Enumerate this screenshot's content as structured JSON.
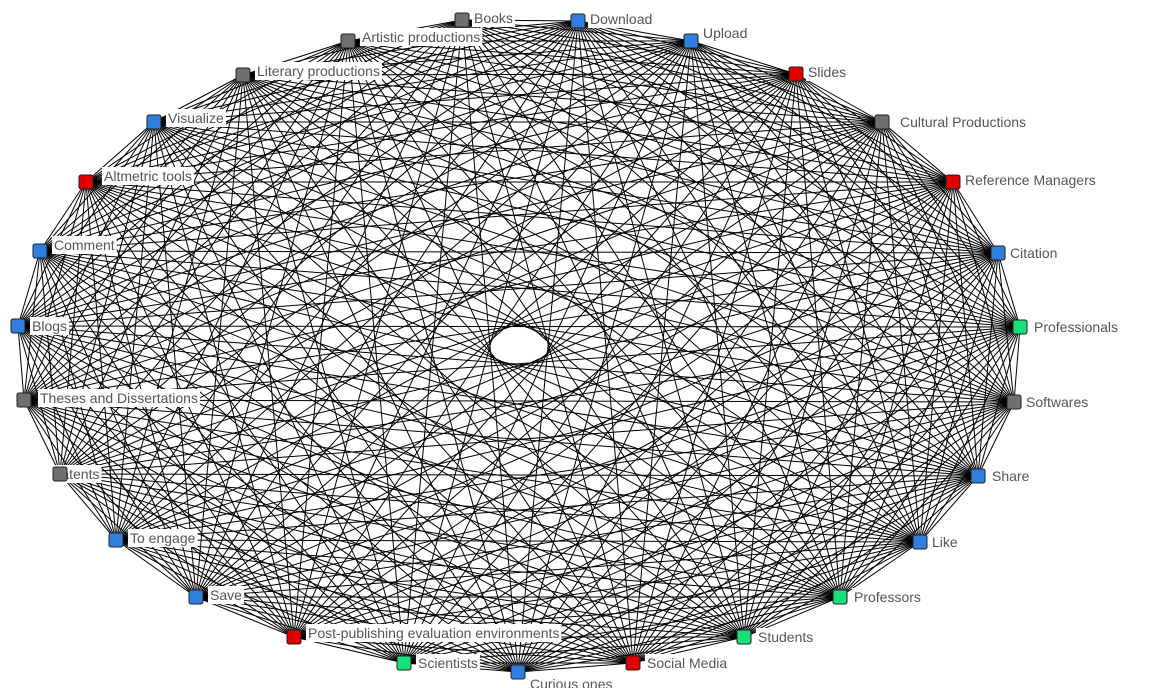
{
  "colors": {
    "blue": "#2f7fe0",
    "red": "#e00000",
    "gray": "#707070",
    "green": "#16e07a",
    "edge": "#000000",
    "label": "#555555"
  },
  "nodes": [
    {
      "id": "books",
      "label": "Books",
      "group": "gray"
    },
    {
      "id": "download",
      "label": "Download",
      "group": "blue"
    },
    {
      "id": "upload",
      "label": "Upload",
      "group": "blue"
    },
    {
      "id": "slides",
      "label": "Slides",
      "group": "red"
    },
    {
      "id": "cultural-productions",
      "label": "Cultural Productions",
      "group": "gray"
    },
    {
      "id": "reference-managers",
      "label": "Reference Managers",
      "group": "red"
    },
    {
      "id": "citation",
      "label": "Citation",
      "group": "blue"
    },
    {
      "id": "professionals",
      "label": "Professionals",
      "group": "green"
    },
    {
      "id": "softwares",
      "label": "Softwares",
      "group": "gray"
    },
    {
      "id": "share",
      "label": "Share",
      "group": "blue"
    },
    {
      "id": "like",
      "label": "Like",
      "group": "blue"
    },
    {
      "id": "professors",
      "label": "Professors",
      "group": "green"
    },
    {
      "id": "students",
      "label": "Students",
      "group": "green"
    },
    {
      "id": "social-media",
      "label": "Social Media",
      "group": "red"
    },
    {
      "id": "curious-ones",
      "label": "Curious ones",
      "group": "blue"
    },
    {
      "id": "scientists",
      "label": "Scientists",
      "group": "green"
    },
    {
      "id": "post-publishing",
      "label": "Post-publishing evaluation environments",
      "group": "red"
    },
    {
      "id": "save",
      "label": "Save",
      "group": "blue"
    },
    {
      "id": "to-engage",
      "label": "To engage",
      "group": "blue"
    },
    {
      "id": "patents",
      "label": "Patents",
      "group": "gray"
    },
    {
      "id": "theses",
      "label": "Theses and Dissertations",
      "group": "gray"
    },
    {
      "id": "blogs",
      "label": "Blogs",
      "group": "blue"
    },
    {
      "id": "comment",
      "label": "Comment",
      "group": "blue"
    },
    {
      "id": "altmetric-tools",
      "label": "Altmetric tools",
      "group": "red"
    },
    {
      "id": "visualize",
      "label": "Visualize",
      "group": "blue"
    },
    {
      "id": "literary-productions",
      "label": "Literary productions",
      "group": "gray"
    },
    {
      "id": "artistic-productions",
      "label": "Artistic productions",
      "group": "gray"
    }
  ],
  "edges": "complete"
}
